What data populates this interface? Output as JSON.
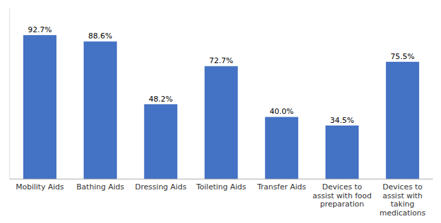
{
  "chart_data": {
    "type": "bar",
    "categories": [
      "Mobility Aids",
      "Bathing Aids",
      "Dressing Aids",
      "Toileting Aids",
      "Transfer Aids",
      "Devices to\nassist with food\npreparation",
      "Devices to\nassist with\ntaking\nmedications"
    ],
    "values": [
      92.7,
      88.6,
      48.2,
      72.7,
      40.0,
      34.5,
      75.5
    ],
    "value_labels": [
      "92.7%",
      "88.6%",
      "48.2%",
      "72.7%",
      "40.0%",
      "34.5%",
      "75.5%"
    ],
    "color": "#4472C4",
    "ylim": [
      0,
      110
    ],
    "data_labels": true,
    "tick_labels": "x",
    "grid": false
  }
}
